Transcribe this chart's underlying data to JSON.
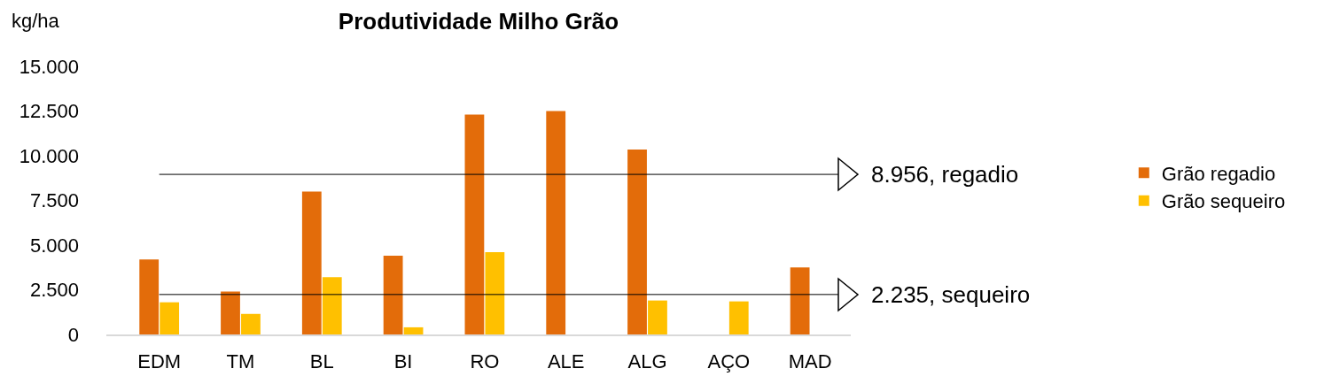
{
  "chart_data": {
    "type": "bar",
    "title": "Produtividade Milho Grão",
    "ylabel": "kg/ha",
    "categories": [
      "EDM",
      "TM",
      "BL",
      "BI",
      "RO",
      "ALE",
      "ALG",
      "AÇO",
      "MAD"
    ],
    "series": [
      {
        "name": "Grão regadio",
        "color": "#e36c0a",
        "values": [
          4200,
          2400,
          8000,
          4400,
          12300,
          12500,
          10350,
          null,
          3750
        ]
      },
      {
        "name": "Grão sequeiro",
        "color": "#ffc000",
        "values": [
          1800,
          1150,
          3200,
          400,
          4600,
          null,
          1900,
          1850,
          null
        ]
      }
    ],
    "ylim": [
      0,
      15000
    ],
    "yticks": [
      {
        "value": 0,
        "label": "0"
      },
      {
        "value": 2500,
        "label": "2.500"
      },
      {
        "value": 5000,
        "label": "5.000"
      },
      {
        "value": 7500,
        "label": "7.500"
      },
      {
        "value": 10000,
        "label": "10.000"
      },
      {
        "value": 12500,
        "label": "12.500"
      },
      {
        "value": 15000,
        "label": "15.000"
      }
    ],
    "ref_lines": [
      {
        "axis": "y",
        "value": 8956,
        "label": "8.956, regadio",
        "color": "#000000"
      },
      {
        "axis": "y",
        "value": 2235,
        "label": "2.235, sequeiro",
        "color": "#000000"
      }
    ],
    "grid": false,
    "legend": "right"
  }
}
